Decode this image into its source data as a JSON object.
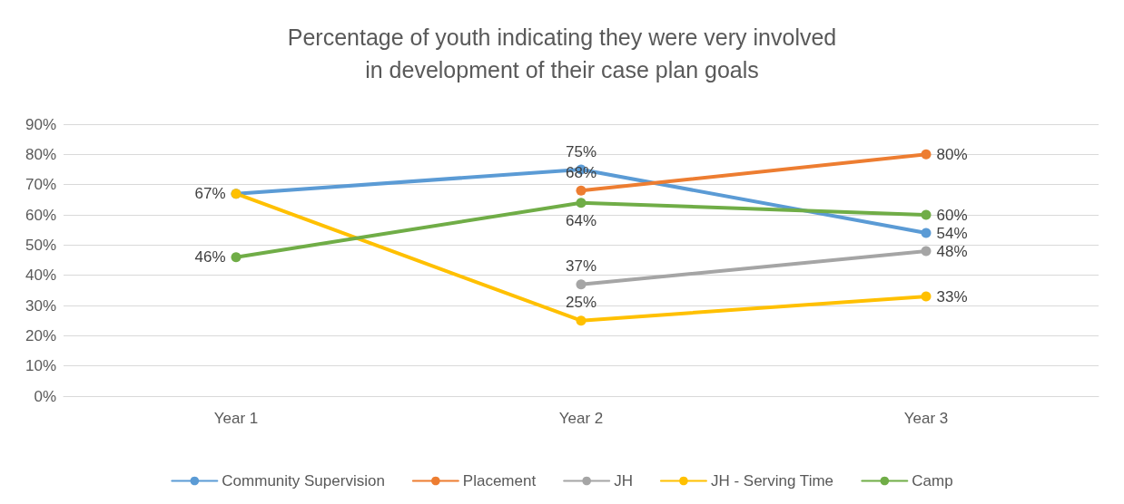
{
  "chart_data": {
    "type": "line",
    "title": "Percentage of youth indicating they were very involved\nin development of their case plan goals",
    "categories": [
      "Year 1",
      "Year 2",
      "Year 3"
    ],
    "series": [
      {
        "name": "Community Supervision",
        "color": "#5b9bd5",
        "values": [
          67,
          75,
          54
        ],
        "value_labels": [
          "67%",
          "75%",
          "54%"
        ]
      },
      {
        "name": "Placement",
        "color": "#ed7d31",
        "values": [
          null,
          68,
          80
        ],
        "value_labels": [
          null,
          "68%",
          "80%"
        ]
      },
      {
        "name": "JH",
        "color": "#a5a5a5",
        "values": [
          null,
          37,
          48
        ],
        "value_labels": [
          null,
          "37%",
          "48%"
        ]
      },
      {
        "name": "JH - Serving Time",
        "color": "#ffc000",
        "values": [
          67,
          25,
          33
        ],
        "value_labels": [
          null,
          "25%",
          "33%"
        ]
      },
      {
        "name": "Camp",
        "color": "#70ad47",
        "values": [
          46,
          64,
          60
        ],
        "value_labels": [
          "46%",
          "64%",
          "60%"
        ]
      }
    ],
    "ylim": [
      0,
      90
    ],
    "yticks": [
      {
        "value": 0,
        "label": "0%"
      },
      {
        "value": 10,
        "label": "10%"
      },
      {
        "value": 20,
        "label": "20%"
      },
      {
        "value": 30,
        "label": "30%"
      },
      {
        "value": 40,
        "label": "40%"
      },
      {
        "value": 50,
        "label": "50%"
      },
      {
        "value": 60,
        "label": "60%"
      },
      {
        "value": 70,
        "label": "70%"
      },
      {
        "value": 80,
        "label": "80%"
      },
      {
        "value": 90,
        "label": "90%"
      }
    ],
    "grid": "y",
    "legend": "bottom",
    "marker": "circle",
    "line_style": "solid"
  }
}
